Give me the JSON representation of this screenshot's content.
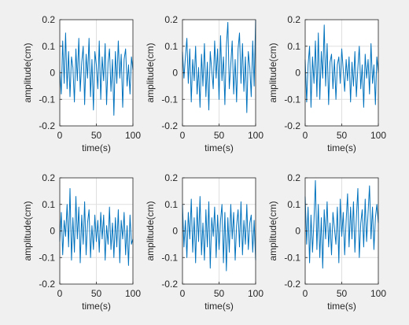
{
  "figure": {
    "background": "#f0f0f0",
    "axes_background": "#ffffff",
    "line_color": "#0072bd",
    "grid_color": "#dfdfdf",
    "axis_color": "#262626"
  },
  "chart_data": [
    {
      "type": "line",
      "xlabel": "time(s)",
      "ylabel": "amplitude(cm)",
      "xlim": [
        0,
        100
      ],
      "ylim": [
        -0.2,
        0.2
      ],
      "xticks": [
        "0",
        "50",
        "100"
      ],
      "yticks": [
        "-0.2",
        "-0.1",
        "0",
        "0.1",
        "0.2"
      ],
      "grid": true,
      "series": [
        {
          "x": [
            0,
            2,
            4,
            6,
            8,
            10,
            12,
            14,
            16,
            18,
            20,
            22,
            24,
            26,
            28,
            30,
            32,
            34,
            36,
            38,
            40,
            42,
            44,
            46,
            48,
            50,
            52,
            54,
            56,
            58,
            60,
            62,
            64,
            66,
            68,
            70,
            72,
            74,
            76,
            78,
            80,
            82,
            84,
            86,
            88,
            90,
            92,
            94,
            96,
            98,
            100
          ],
          "values": [
            0.01,
            -0.08,
            0.12,
            -0.04,
            0.15,
            -0.06,
            0.08,
            -0.09,
            0.06,
            0.02,
            -0.11,
            0.09,
            -0.03,
            0.13,
            -0.07,
            0.04,
            0.1,
            -0.12,
            0.07,
            -0.02,
            0.13,
            -0.09,
            0.05,
            -0.14,
            0.08,
            0.03,
            -0.06,
            0.12,
            -0.1,
            0.06,
            -0.03,
            0.11,
            -0.12,
            0.04,
            0.09,
            -0.07,
            0.05,
            -0.16,
            0.08,
            -0.04,
            0.12,
            -0.02,
            0.07,
            -0.13,
            0.05,
            0.09,
            -0.05,
            0.03,
            -0.08,
            0.06,
            0.01
          ]
        }
      ]
    },
    {
      "type": "line",
      "xlabel": "time(s)",
      "ylabel": "amplitude(cm)",
      "xlim": [
        0,
        100
      ],
      "ylim": [
        -0.2,
        0.2
      ],
      "xticks": [
        "0",
        "50",
        "100"
      ],
      "yticks": [
        "-0.2",
        "-0.1",
        "0",
        "0.1",
        "0.2"
      ],
      "grid": true,
      "series": [
        {
          "x": [
            0,
            2,
            4,
            6,
            8,
            10,
            12,
            14,
            16,
            18,
            20,
            22,
            24,
            26,
            28,
            30,
            32,
            34,
            36,
            38,
            40,
            42,
            44,
            46,
            48,
            50,
            52,
            54,
            56,
            58,
            60,
            62,
            64,
            66,
            68,
            70,
            72,
            74,
            76,
            78,
            80,
            82,
            84,
            86,
            88,
            90,
            92,
            94,
            96,
            98,
            100
          ],
          "values": [
            0.08,
            -0.02,
            0.06,
            0.13,
            -0.04,
            0.09,
            -0.11,
            0.05,
            -0.03,
            0.1,
            -0.08,
            0.02,
            -0.13,
            0.07,
            -0.05,
            0.11,
            -0.09,
            0.04,
            -0.14,
            0.08,
            0.01,
            -0.06,
            0.12,
            -0.02,
            0.09,
            -0.1,
            0.14,
            -0.03,
            0.06,
            -0.12,
            0.1,
            0.19,
            -0.06,
            0.03,
            0.12,
            -0.08,
            0.05,
            -0.11,
            0.09,
            0.15,
            -0.04,
            0.11,
            -0.07,
            0.06,
            -0.15,
            0.08,
            0.02,
            -0.09,
            0.12,
            -0.05,
            0.2
          ]
        }
      ]
    },
    {
      "type": "line",
      "xlabel": "time(s)",
      "ylabel": "amplitude(cm)",
      "xlim": [
        0,
        100
      ],
      "ylim": [
        -0.2,
        0.2
      ],
      "xticks": [
        "0",
        "50",
        "100"
      ],
      "yticks": [
        "-0.2",
        "-0.1",
        "0",
        "0.1",
        "0.2"
      ],
      "grid": true,
      "series": [
        {
          "x": [
            0,
            2,
            4,
            6,
            8,
            10,
            12,
            14,
            16,
            18,
            20,
            22,
            24,
            26,
            28,
            30,
            32,
            34,
            36,
            38,
            40,
            42,
            44,
            46,
            48,
            50,
            52,
            54,
            56,
            58,
            60,
            62,
            64,
            66,
            68,
            70,
            72,
            74,
            76,
            78,
            80,
            82,
            84,
            86,
            88,
            90,
            92,
            94,
            96,
            98,
            100
          ],
          "values": [
            0.05,
            -0.11,
            0.03,
            0.1,
            -0.13,
            0.06,
            -0.04,
            0.12,
            -0.09,
            0.15,
            -0.1,
            0.08,
            -0.02,
            0.18,
            -0.05,
            0.11,
            -0.12,
            0.04,
            0.07,
            -0.06,
            0.05,
            -0.1,
            0.03,
            0.06,
            -0.04,
            0.09,
            0.01,
            -0.07,
            0.05,
            -0.03,
            0.06,
            -0.11,
            0.04,
            -0.05,
            0.08,
            -0.09,
            0.02,
            0.1,
            -0.06,
            0.03,
            -0.13,
            0.07,
            -0.02,
            0.05,
            -0.08,
            0.11,
            -0.04,
            0.03,
            -0.12,
            0.06,
            0.0
          ]
        }
      ]
    },
    {
      "type": "line",
      "xlabel": "time(s)",
      "ylabel": "amplitude(cm)",
      "xlim": [
        0,
        100
      ],
      "ylim": [
        -0.2,
        0.2
      ],
      "xticks": [
        "0",
        "50",
        "100"
      ],
      "yticks": [
        "-0.2",
        "-0.1",
        "0",
        "0.1",
        "0.2"
      ],
      "grid": true,
      "series": [
        {
          "x": [
            0,
            2,
            4,
            6,
            8,
            10,
            12,
            14,
            16,
            18,
            20,
            22,
            24,
            26,
            28,
            30,
            32,
            34,
            36,
            38,
            40,
            42,
            44,
            46,
            48,
            50,
            52,
            54,
            56,
            58,
            60,
            62,
            64,
            66,
            68,
            70,
            72,
            74,
            76,
            78,
            80,
            82,
            84,
            86,
            88,
            90,
            92,
            94,
            96,
            98,
            100
          ],
          "values": [
            -0.04,
            0.07,
            -0.09,
            0.04,
            -0.02,
            0.1,
            -0.06,
            0.16,
            -0.11,
            0.05,
            -0.08,
            0.13,
            -0.03,
            0.09,
            -0.12,
            0.06,
            -0.05,
            0.11,
            -0.09,
            0.03,
            0.08,
            -0.1,
            0.02,
            -0.07,
            0.06,
            -0.04,
            0.04,
            -0.08,
            0.07,
            -0.03,
            0.06,
            -0.11,
            0.02,
            -0.05,
            0.09,
            -0.07,
            0.03,
            -0.1,
            0.05,
            -0.06,
            0.08,
            -0.12,
            0.04,
            -0.03,
            0.07,
            -0.09,
            0.02,
            -0.13,
            0.06,
            -0.05,
            -0.03
          ]
        }
      ]
    },
    {
      "type": "line",
      "xlabel": "time(s)",
      "ylabel": "amplitude(cm)",
      "xlim": [
        0,
        100
      ],
      "ylim": [
        -0.2,
        0.2
      ],
      "xticks": [
        "0",
        "50",
        "100"
      ],
      "yticks": [
        "-0.2",
        "-0.1",
        "0",
        "0.1",
        "0.2"
      ],
      "grid": true,
      "series": [
        {
          "x": [
            0,
            2,
            4,
            6,
            8,
            10,
            12,
            14,
            16,
            18,
            20,
            22,
            24,
            26,
            28,
            30,
            32,
            34,
            36,
            38,
            40,
            42,
            44,
            46,
            48,
            50,
            52,
            54,
            56,
            58,
            60,
            62,
            64,
            66,
            68,
            70,
            72,
            74,
            76,
            78,
            80,
            82,
            84,
            86,
            88,
            90,
            92,
            94,
            96,
            98,
            100
          ],
          "values": [
            0.1,
            -0.06,
            0.04,
            -0.1,
            0.07,
            -0.03,
            0.12,
            -0.08,
            0.05,
            -0.12,
            0.09,
            -0.04,
            0.13,
            -0.09,
            0.03,
            -0.11,
            0.08,
            -0.06,
            0.11,
            -0.14,
            0.05,
            -0.02,
            0.09,
            -0.1,
            0.06,
            -0.07,
            0.04,
            0.1,
            -0.12,
            0.07,
            -0.15,
            0.05,
            -0.08,
            0.1,
            -0.03,
            0.07,
            -0.11,
            0.02,
            0.08,
            -0.06,
            0.11,
            -0.09,
            0.04,
            -0.05,
            0.1,
            -0.07,
            0.03,
            0.06,
            -0.08,
            0.04,
            -0.11
          ]
        }
      ]
    },
    {
      "type": "line",
      "xlabel": "time(s)",
      "ylabel": "amplitude(cm)",
      "xlim": [
        0,
        100
      ],
      "ylim": [
        -0.2,
        0.2
      ],
      "xticks": [
        "0",
        "50",
        "100"
      ],
      "yticks": [
        "-0.2",
        "-0.1",
        "0",
        "0.1",
        "0.2"
      ],
      "grid": true,
      "series": [
        {
          "x": [
            0,
            2,
            4,
            6,
            8,
            10,
            12,
            14,
            16,
            18,
            20,
            22,
            24,
            26,
            28,
            30,
            32,
            34,
            36,
            38,
            40,
            42,
            44,
            46,
            48,
            50,
            52,
            54,
            56,
            58,
            60,
            62,
            64,
            66,
            68,
            70,
            72,
            74,
            76,
            78,
            80,
            82,
            84,
            86,
            88,
            90,
            92,
            94,
            96,
            98,
            100
          ],
          "values": [
            0.13,
            -0.05,
            0.09,
            -0.12,
            0.06,
            -0.08,
            0.04,
            0.19,
            -0.07,
            0.1,
            -0.1,
            0.05,
            -0.14,
            0.08,
            -0.03,
            0.11,
            -0.06,
            0.03,
            -0.09,
            0.07,
            0.01,
            -0.05,
            0.09,
            -0.12,
            0.12,
            -0.02,
            0.07,
            -0.09,
            0.04,
            0.14,
            -0.06,
            0.09,
            -0.03,
            0.11,
            -0.08,
            0.05,
            0.16,
            -0.1,
            0.03,
            0.08,
            -0.06,
            0.12,
            -0.04,
            0.07,
            0.17,
            -0.03,
            0.09,
            -0.07,
            0.05,
            0.1,
            0.03
          ]
        }
      ]
    }
  ]
}
